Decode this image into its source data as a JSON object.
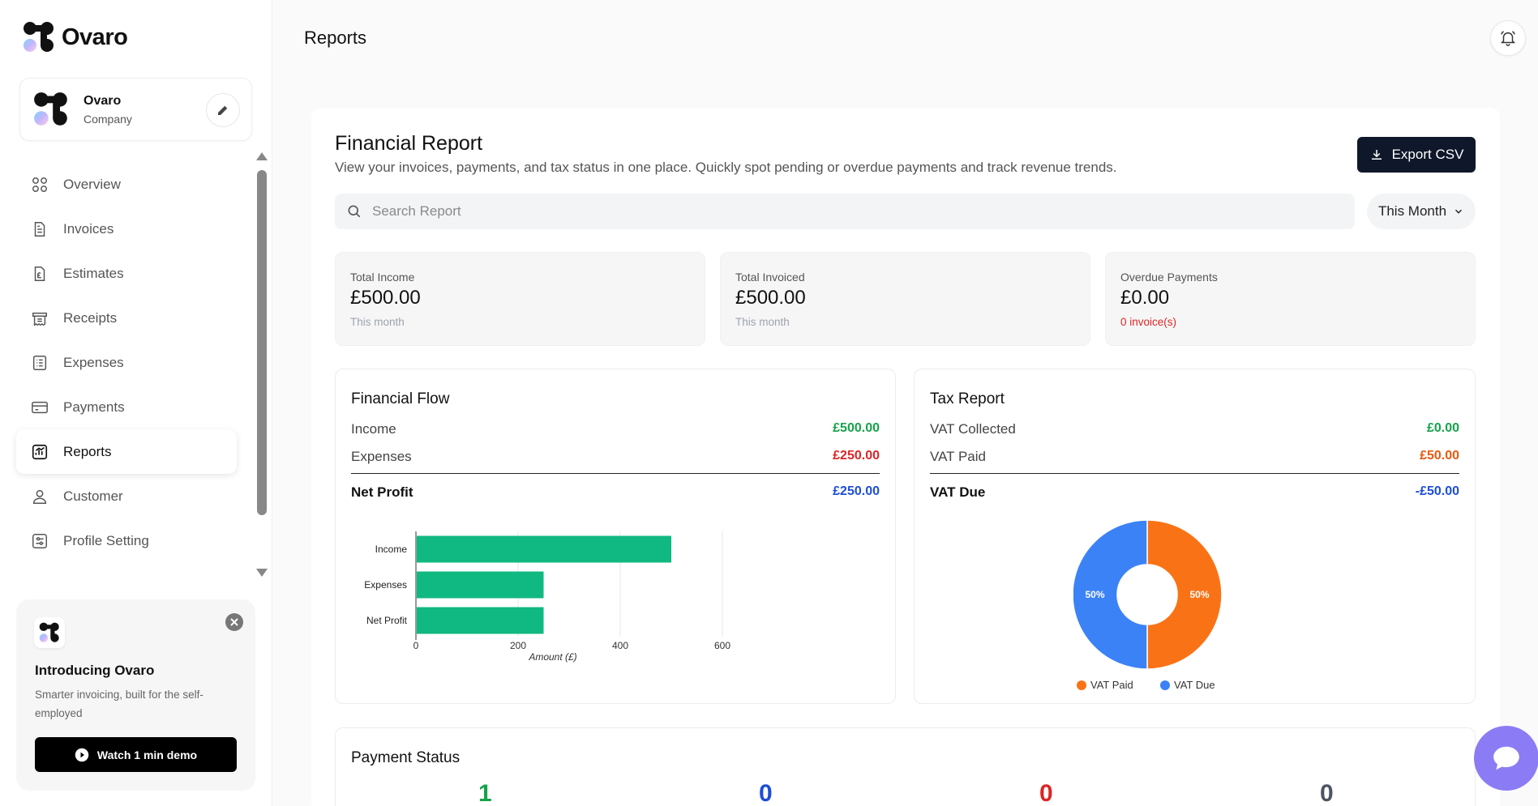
{
  "brand": {
    "name": "Ovaro"
  },
  "company": {
    "name": "Ovaro",
    "type": "Company"
  },
  "nav": {
    "items": [
      {
        "label": "Overview",
        "icon": "grid-icon"
      },
      {
        "label": "Invoices",
        "icon": "document-icon"
      },
      {
        "label": "Estimates",
        "icon": "pound-document-icon"
      },
      {
        "label": "Receipts",
        "icon": "receipt-icon"
      },
      {
        "label": "Expenses",
        "icon": "list-icon"
      },
      {
        "label": "Payments",
        "icon": "card-icon"
      },
      {
        "label": "Reports",
        "icon": "chart-icon",
        "active": true
      },
      {
        "label": "Customer",
        "icon": "user-icon"
      },
      {
        "label": "Profile Setting",
        "icon": "settings-icon"
      }
    ]
  },
  "promo": {
    "title": "Introducing Ovaro",
    "text": "Smarter invoicing, built for the self-employed",
    "button": "Watch 1 min demo"
  },
  "header": {
    "title": "Reports"
  },
  "report": {
    "title": "Financial Report",
    "description": "View your invoices, payments, and tax status in one place. Quickly spot pending or overdue payments and track revenue trends.",
    "export_label": "Export CSV",
    "search_placeholder": "Search Report",
    "period": "This Month"
  },
  "stats": [
    {
      "label": "Total Income",
      "value": "£500.00",
      "sub": "This month"
    },
    {
      "label": "Total Invoiced",
      "value": "£500.00",
      "sub": "This month"
    },
    {
      "label": "Overdue Payments",
      "value": "£0.00",
      "sub": "0 invoice(s)"
    }
  ],
  "financial_flow": {
    "title": "Financial Flow",
    "income_label": "Income",
    "income_value": "£500.00",
    "expenses_label": "Expenses",
    "expenses_value": "£250.00",
    "net_label": "Net Profit",
    "net_value": "£250.00"
  },
  "tax_report": {
    "title": "Tax Report",
    "collected_label": "VAT Collected",
    "collected_value": "£0.00",
    "paid_label": "VAT Paid",
    "paid_value": "£50.00",
    "due_label": "VAT Due",
    "due_value": "-£50.00"
  },
  "payment_status": {
    "title": "Payment Status",
    "counts": [
      "1",
      "0",
      "0",
      "0"
    ]
  },
  "colors": {
    "green": "#16a34a",
    "red": "#dc2626",
    "blue": "#1d4ed8",
    "orange": "#ea580c",
    "bar": "#10b981",
    "pie_orange": "#f97316",
    "pie_blue": "#3b82f6"
  },
  "chart_data": [
    {
      "type": "bar",
      "orientation": "horizontal",
      "categories": [
        "Income",
        "Expenses",
        "Net Profit"
      ],
      "values": [
        500,
        250,
        250
      ],
      "xlabel": "Amount (£)",
      "xlim": [
        0,
        600
      ],
      "xticks": [
        0,
        200,
        400,
        600
      ],
      "grid": true
    },
    {
      "type": "pie",
      "donut": true,
      "labels": [
        "VAT Paid",
        "VAT Due"
      ],
      "values": [
        50,
        50
      ],
      "data_labels": [
        "50%",
        "50%"
      ],
      "legend": "bottom"
    }
  ]
}
